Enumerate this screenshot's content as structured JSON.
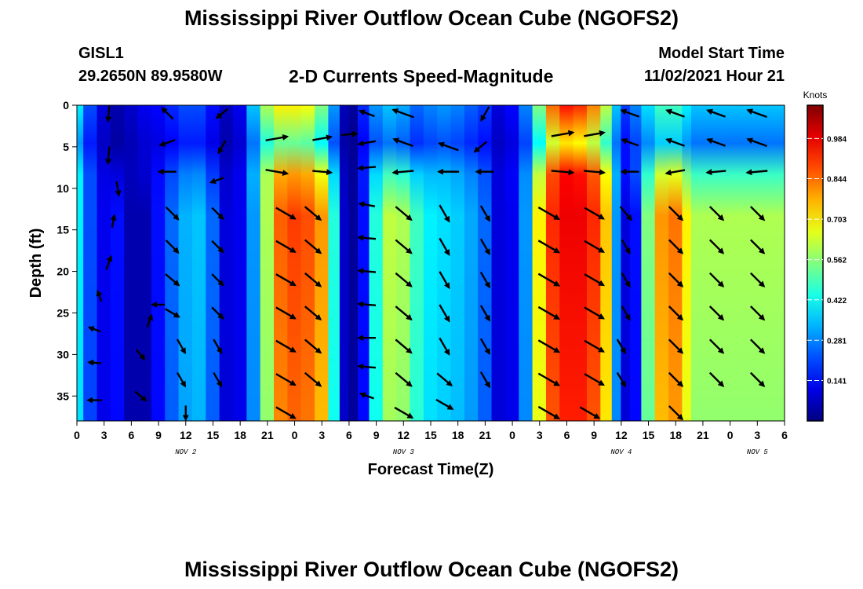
{
  "header": {
    "title": "Mississippi River Outflow Ocean Cube (NGOFS2)",
    "station": "GISL1",
    "coords": "29.2650N  89.9580W",
    "subtitle": "2-D Currents Speed-Magnitude",
    "start_label": "Model Start Time",
    "start_value": "11/02/2021 Hour 21"
  },
  "footer": {
    "title": "Mississippi River Outflow Ocean Cube (NGOFS2)"
  },
  "chart_data": {
    "type": "heatmap",
    "title": "2-D Currents Speed-Magnitude",
    "xlabel": "Forecast Time(Z)",
    "ylabel": "Depth (ft)",
    "x_tick_labels": [
      "0",
      "3",
      "6",
      "9",
      "12",
      "15",
      "18",
      "21",
      "0",
      "3",
      "6",
      "9",
      "12",
      "15",
      "18",
      "21",
      "0",
      "3",
      "6",
      "9",
      "12",
      "15",
      "18",
      "21",
      "0",
      "3",
      "6"
    ],
    "x_day_labels": [
      {
        "label": "NOV 2",
        "hour": 12
      },
      {
        "label": "NOV 3",
        "hour": 36
      },
      {
        "label": "NOV 4",
        "hour": 60
      },
      {
        "label": "NOV 5",
        "hour": 75
      }
    ],
    "xlim_hours": [
      0,
      78
    ],
    "y_ticks": [
      0,
      5,
      10,
      15,
      20,
      25,
      30,
      35
    ],
    "ylim": [
      0,
      38
    ],
    "y_inverted": true,
    "colorbar": {
      "label": "Knots",
      "ticks": [
        "0.984",
        "0.844",
        "0.703",
        "0.562",
        "0.422",
        "0.281",
        "0.141"
      ],
      "range": [
        0,
        1.1
      ],
      "colormap": "jet"
    },
    "speed_columns": [
      {
        "hour": 0,
        "surface": 0.4,
        "bottom": 0.4
      },
      {
        "hour": 1.5,
        "surface": 0.22,
        "bottom": 0.22
      },
      {
        "hour": 3,
        "surface": 0.1,
        "bottom": 0.12
      },
      {
        "hour": 4.5,
        "surface": 0.05,
        "bottom": 0.15
      },
      {
        "hour": 6,
        "surface": 0.08,
        "bottom": 0.05
      },
      {
        "hour": 7.5,
        "surface": 0.12,
        "bottom": 0.05
      },
      {
        "hour": 9,
        "surface": 0.14,
        "bottom": 0.15
      },
      {
        "hour": 10.5,
        "surface": 0.18,
        "bottom": 0.25
      },
      {
        "hour": 12,
        "surface": 0.22,
        "bottom": 0.33
      },
      {
        "hour": 13.5,
        "surface": 0.22,
        "bottom": 0.35
      },
      {
        "hour": 15,
        "surface": 0.15,
        "bottom": 0.25
      },
      {
        "hour": 16.5,
        "surface": 0.07,
        "bottom": 0.1
      },
      {
        "hour": 18,
        "surface": 0.12,
        "bottom": 0.12
      },
      {
        "hour": 19.5,
        "surface": 0.35,
        "bottom": 0.3
      },
      {
        "hour": 21,
        "surface": 0.6,
        "bottom": 0.6
      },
      {
        "hour": 22.5,
        "surface": 0.7,
        "bottom": 0.86
      },
      {
        "hour": 24,
        "surface": 0.7,
        "bottom": 0.9
      },
      {
        "hour": 25.5,
        "surface": 0.68,
        "bottom": 0.88
      },
      {
        "hour": 27,
        "surface": 0.55,
        "bottom": 0.8
      },
      {
        "hour": 28.5,
        "surface": 0.3,
        "bottom": 0.45
      },
      {
        "hour": 29.5,
        "surface": 0.06,
        "bottom": 0.08
      },
      {
        "hour": 30.5,
        "surface": 0.03,
        "bottom": 0.03
      },
      {
        "hour": 31.5,
        "surface": 0.18,
        "bottom": 0.15
      },
      {
        "hour": 33,
        "surface": 0.3,
        "bottom": 0.45
      },
      {
        "hour": 34.5,
        "surface": 0.35,
        "bottom": 0.62
      },
      {
        "hour": 36,
        "surface": 0.32,
        "bottom": 0.6
      },
      {
        "hour": 37.5,
        "surface": 0.25,
        "bottom": 0.48
      },
      {
        "hour": 39,
        "surface": 0.28,
        "bottom": 0.4
      },
      {
        "hour": 40.5,
        "surface": 0.3,
        "bottom": 0.38
      },
      {
        "hour": 42,
        "surface": 0.28,
        "bottom": 0.36
      },
      {
        "hour": 43.5,
        "surface": 0.24,
        "bottom": 0.32
      },
      {
        "hour": 45,
        "surface": 0.2,
        "bottom": 0.25
      },
      {
        "hour": 46.5,
        "surface": 0.1,
        "bottom": 0.1
      },
      {
        "hour": 48,
        "surface": 0.14,
        "bottom": 0.12
      },
      {
        "hour": 49.5,
        "surface": 0.28,
        "bottom": 0.3
      },
      {
        "hour": 51,
        "surface": 0.55,
        "bottom": 0.7
      },
      {
        "hour": 52.5,
        "surface": 0.85,
        "bottom": 0.92
      },
      {
        "hour": 54,
        "surface": 0.95,
        "bottom": 0.98
      },
      {
        "hour": 55.5,
        "surface": 0.92,
        "bottom": 0.98
      },
      {
        "hour": 57,
        "surface": 0.82,
        "bottom": 0.92
      },
      {
        "hour": 58.5,
        "surface": 0.62,
        "bottom": 0.75
      },
      {
        "hour": 59.5,
        "surface": 0.35,
        "bottom": 0.3
      },
      {
        "hour": 60.5,
        "surface": 0.2,
        "bottom": 0.1
      },
      {
        "hour": 61.5,
        "surface": 0.28,
        "bottom": 0.15
      },
      {
        "hour": 63,
        "surface": 0.38,
        "bottom": 0.55
      },
      {
        "hour": 64.5,
        "surface": 0.48,
        "bottom": 0.8
      },
      {
        "hour": 66,
        "surface": 0.48,
        "bottom": 0.84
      },
      {
        "hour": 67.5,
        "surface": 0.4,
        "bottom": 0.7
      },
      {
        "hour": 68,
        "surface": 0.35,
        "bottom": 0.6
      }
    ],
    "vectors": [
      {
        "hour": 3.5,
        "depth": 1,
        "angle": 265,
        "len": 20
      },
      {
        "hour": 3.5,
        "depth": 6,
        "angle": 265,
        "len": 22
      },
      {
        "hour": 4.5,
        "depth": 10,
        "angle": 280,
        "len": 18
      },
      {
        "hour": 4,
        "depth": 14,
        "angle": 80,
        "len": 16
      },
      {
        "hour": 3.5,
        "depth": 19,
        "angle": 70,
        "len": 18
      },
      {
        "hour": 2.5,
        "depth": 23,
        "angle": 110,
        "len": 14
      },
      {
        "hour": 2,
        "depth": 27,
        "angle": 160,
        "len": 16
      },
      {
        "hour": 2,
        "depth": 31,
        "angle": 175,
        "len": 16
      },
      {
        "hour": 2,
        "depth": 35.5,
        "angle": 180,
        "len": 18
      },
      {
        "hour": 10,
        "depth": 1,
        "angle": 135,
        "len": 20
      },
      {
        "hour": 10,
        "depth": 4.5,
        "angle": 200,
        "len": 20
      },
      {
        "hour": 10,
        "depth": 8,
        "angle": 180,
        "len": 22
      },
      {
        "hour": 10.5,
        "depth": 13,
        "angle": 315,
        "len": 22
      },
      {
        "hour": 10.5,
        "depth": 17,
        "angle": 315,
        "len": 22
      },
      {
        "hour": 10.5,
        "depth": 21,
        "angle": 320,
        "len": 22
      },
      {
        "hour": 10.5,
        "depth": 25,
        "angle": 330,
        "len": 20
      },
      {
        "hour": 11.5,
        "depth": 29,
        "angle": 300,
        "len": 20
      },
      {
        "hour": 11.5,
        "depth": 33,
        "angle": 300,
        "len": 20
      },
      {
        "hour": 12,
        "depth": 37,
        "angle": 270,
        "len": 18
      },
      {
        "hour": 16,
        "depth": 1,
        "angle": 220,
        "len": 18
      },
      {
        "hour": 16,
        "depth": 5,
        "angle": 240,
        "len": 18
      },
      {
        "hour": 15.5,
        "depth": 9,
        "angle": 200,
        "len": 18
      },
      {
        "hour": 15.5,
        "depth": 13,
        "angle": 315,
        "len": 20
      },
      {
        "hour": 15.5,
        "depth": 17,
        "angle": 315,
        "len": 20
      },
      {
        "hour": 15.5,
        "depth": 21,
        "angle": 315,
        "len": 20
      },
      {
        "hour": 15.5,
        "depth": 25,
        "angle": 315,
        "len": 20
      },
      {
        "hour": 15.5,
        "depth": 29,
        "angle": 300,
        "len": 20
      },
      {
        "hour": 15.5,
        "depth": 33,
        "angle": 300,
        "len": 20
      },
      {
        "hour": 8,
        "depth": 26,
        "angle": 70,
        "len": 16
      },
      {
        "hour": 7,
        "depth": 30,
        "angle": 310,
        "len": 16
      },
      {
        "hour": 7,
        "depth": 35,
        "angle": 320,
        "len": 18
      },
      {
        "hour": 9,
        "depth": 24,
        "angle": 180,
        "len": 16
      },
      {
        "hour": 22,
        "depth": 4,
        "angle": 10,
        "len": 28
      },
      {
        "hour": 22,
        "depth": 8,
        "angle": 350,
        "len": 28
      },
      {
        "hour": 23,
        "depth": 13,
        "angle": 330,
        "len": 28
      },
      {
        "hour": 23,
        "depth": 17,
        "angle": 330,
        "len": 28
      },
      {
        "hour": 23,
        "depth": 21,
        "angle": 330,
        "len": 28
      },
      {
        "hour": 23,
        "depth": 25,
        "angle": 330,
        "len": 28
      },
      {
        "hour": 23,
        "depth": 29,
        "angle": 330,
        "len": 28
      },
      {
        "hour": 23,
        "depth": 33,
        "angle": 330,
        "len": 28
      },
      {
        "hour": 23,
        "depth": 37,
        "angle": 330,
        "len": 28
      },
      {
        "hour": 27,
        "depth": 4,
        "angle": 10,
        "len": 24
      },
      {
        "hour": 27,
        "depth": 8,
        "angle": 355,
        "len": 24
      },
      {
        "hour": 26,
        "depth": 13,
        "angle": 320,
        "len": 26
      },
      {
        "hour": 26,
        "depth": 17,
        "angle": 320,
        "len": 26
      },
      {
        "hour": 26,
        "depth": 21,
        "angle": 320,
        "len": 26
      },
      {
        "hour": 26,
        "depth": 25,
        "angle": 320,
        "len": 26
      },
      {
        "hour": 26,
        "depth": 29,
        "angle": 320,
        "len": 26
      },
      {
        "hour": 26,
        "depth": 33,
        "angle": 320,
        "len": 26
      },
      {
        "hour": 30,
        "depth": 3.5,
        "angle": 5,
        "len": 20
      },
      {
        "hour": 32,
        "depth": 1,
        "angle": 160,
        "len": 20
      },
      {
        "hour": 32,
        "depth": 4.5,
        "angle": 190,
        "len": 22
      },
      {
        "hour": 32,
        "depth": 7.5,
        "angle": 185,
        "len": 22
      },
      {
        "hour": 32,
        "depth": 12,
        "angle": 170,
        "len": 20
      },
      {
        "hour": 32,
        "depth": 16,
        "angle": 175,
        "len": 22
      },
      {
        "hour": 32,
        "depth": 20,
        "angle": 175,
        "len": 22
      },
      {
        "hour": 32,
        "depth": 24,
        "angle": 175,
        "len": 22
      },
      {
        "hour": 32,
        "depth": 28,
        "angle": 180,
        "len": 22
      },
      {
        "hour": 32,
        "depth": 31.5,
        "angle": 175,
        "len": 22
      },
      {
        "hour": 32,
        "depth": 35,
        "angle": 160,
        "len": 18
      },
      {
        "hour": 36,
        "depth": 1,
        "angle": 160,
        "len": 28
      },
      {
        "hour": 36,
        "depth": 4.5,
        "angle": 160,
        "len": 26
      },
      {
        "hour": 36,
        "depth": 8,
        "angle": 185,
        "len": 26
      },
      {
        "hour": 36,
        "depth": 13,
        "angle": 320,
        "len": 26
      },
      {
        "hour": 36,
        "depth": 17,
        "angle": 320,
        "len": 26
      },
      {
        "hour": 36,
        "depth": 21,
        "angle": 320,
        "len": 26
      },
      {
        "hour": 36,
        "depth": 25,
        "angle": 320,
        "len": 26
      },
      {
        "hour": 36,
        "depth": 29,
        "angle": 320,
        "len": 26
      },
      {
        "hour": 36,
        "depth": 33,
        "angle": 320,
        "len": 26
      },
      {
        "hour": 36,
        "depth": 37,
        "angle": 330,
        "len": 26
      },
      {
        "hour": 41,
        "depth": 5,
        "angle": 160,
        "len": 26
      },
      {
        "hour": 41,
        "depth": 8,
        "angle": 180,
        "len": 26
      },
      {
        "hour": 40.5,
        "depth": 13,
        "angle": 300,
        "len": 24
      },
      {
        "hour": 40.5,
        "depth": 17,
        "angle": 300,
        "len": 24
      },
      {
        "hour": 40.5,
        "depth": 21,
        "angle": 300,
        "len": 24
      },
      {
        "hour": 40.5,
        "depth": 25,
        "angle": 300,
        "len": 24
      },
      {
        "hour": 40.5,
        "depth": 29,
        "angle": 300,
        "len": 24
      },
      {
        "hour": 40.5,
        "depth": 33,
        "angle": 320,
        "len": 24
      },
      {
        "hour": 40.5,
        "depth": 36,
        "angle": 330,
        "len": 24
      },
      {
        "hour": 45,
        "depth": 1,
        "angle": 240,
        "len": 20
      },
      {
        "hour": 44.5,
        "depth": 5,
        "angle": 220,
        "len": 20
      },
      {
        "hour": 45,
        "depth": 8,
        "angle": 180,
        "len": 22
      },
      {
        "hour": 45,
        "depth": 13,
        "angle": 300,
        "len": 22
      },
      {
        "hour": 45,
        "depth": 17,
        "angle": 300,
        "len": 22
      },
      {
        "hour": 45,
        "depth": 21,
        "angle": 300,
        "len": 22
      },
      {
        "hour": 45,
        "depth": 25,
        "angle": 300,
        "len": 22
      },
      {
        "hour": 45,
        "depth": 29,
        "angle": 300,
        "len": 22
      },
      {
        "hour": 45,
        "depth": 33,
        "angle": 300,
        "len": 22
      },
      {
        "hour": 53.5,
        "depth": 3.5,
        "angle": 10,
        "len": 28
      },
      {
        "hour": 53.5,
        "depth": 8,
        "angle": 355,
        "len": 28
      },
      {
        "hour": 52,
        "depth": 13,
        "angle": 330,
        "len": 30
      },
      {
        "hour": 52,
        "depth": 17,
        "angle": 330,
        "len": 30
      },
      {
        "hour": 52,
        "depth": 21,
        "angle": 330,
        "len": 30
      },
      {
        "hour": 52,
        "depth": 25,
        "angle": 330,
        "len": 30
      },
      {
        "hour": 52,
        "depth": 29,
        "angle": 330,
        "len": 30
      },
      {
        "hour": 52,
        "depth": 33,
        "angle": 330,
        "len": 30
      },
      {
        "hour": 52,
        "depth": 37,
        "angle": 330,
        "len": 30
      },
      {
        "hour": 57,
        "depth": 3.5,
        "angle": 10,
        "len": 26
      },
      {
        "hour": 57,
        "depth": 8,
        "angle": 355,
        "len": 26
      },
      {
        "hour": 57,
        "depth": 13,
        "angle": 330,
        "len": 28
      },
      {
        "hour": 57,
        "depth": 17,
        "angle": 330,
        "len": 28
      },
      {
        "hour": 57,
        "depth": 21,
        "angle": 330,
        "len": 28
      },
      {
        "hour": 57,
        "depth": 25,
        "angle": 330,
        "len": 28
      },
      {
        "hour": 57,
        "depth": 29,
        "angle": 330,
        "len": 28
      },
      {
        "hour": 57,
        "depth": 33,
        "angle": 330,
        "len": 28
      },
      {
        "hour": 56.5,
        "depth": 37,
        "angle": 330,
        "len": 28
      },
      {
        "hour": 61,
        "depth": 1,
        "angle": 160,
        "len": 24
      },
      {
        "hour": 61,
        "depth": 4.5,
        "angle": 160,
        "len": 22
      },
      {
        "hour": 61,
        "depth": 8,
        "angle": 180,
        "len": 22
      },
      {
        "hour": 60.5,
        "depth": 13,
        "angle": 310,
        "len": 22
      },
      {
        "hour": 60.5,
        "depth": 17,
        "angle": 300,
        "len": 20
      },
      {
        "hour": 60.5,
        "depth": 21,
        "angle": 300,
        "len": 20
      },
      {
        "hour": 60.5,
        "depth": 25,
        "angle": 300,
        "len": 20
      },
      {
        "hour": 60,
        "depth": 29,
        "angle": 300,
        "len": 20
      },
      {
        "hour": 60,
        "depth": 33,
        "angle": 300,
        "len": 20
      },
      {
        "hour": 66,
        "depth": 1,
        "angle": 160,
        "len": 24
      },
      {
        "hour": 66,
        "depth": 4.5,
        "angle": 160,
        "len": 24
      },
      {
        "hour": 66,
        "depth": 8,
        "angle": 190,
        "len": 24
      },
      {
        "hour": 66,
        "depth": 13,
        "angle": 315,
        "len": 24
      },
      {
        "hour": 66,
        "depth": 17,
        "angle": 315,
        "len": 24
      },
      {
        "hour": 66,
        "depth": 21,
        "angle": 315,
        "len": 24
      },
      {
        "hour": 66,
        "depth": 25,
        "angle": 315,
        "len": 24
      },
      {
        "hour": 66,
        "depth": 29,
        "angle": 315,
        "len": 24
      },
      {
        "hour": 66,
        "depth": 33,
        "angle": 315,
        "len": 24
      },
      {
        "hour": 66,
        "depth": 37,
        "angle": 315,
        "len": 24
      },
      {
        "hour": 70.5,
        "depth": 1,
        "angle": 160,
        "len": 24
      },
      {
        "hour": 70.5,
        "depth": 4.5,
        "angle": 160,
        "len": 24
      },
      {
        "hour": 70.5,
        "depth": 8,
        "angle": 185,
        "len": 24
      },
      {
        "hour": 70.5,
        "depth": 13,
        "angle": 315,
        "len": 24
      },
      {
        "hour": 70.5,
        "depth": 17,
        "angle": 315,
        "len": 24
      },
      {
        "hour": 70.5,
        "depth": 21,
        "angle": 315,
        "len": 24
      },
      {
        "hour": 70.5,
        "depth": 25,
        "angle": 315,
        "len": 24
      },
      {
        "hour": 70.5,
        "depth": 29,
        "angle": 315,
        "len": 24
      },
      {
        "hour": 70.5,
        "depth": 33,
        "angle": 315,
        "len": 24
      },
      {
        "hour": 75,
        "depth": 1,
        "angle": 160,
        "len": 26
      },
      {
        "hour": 75,
        "depth": 4.5,
        "angle": 160,
        "len": 26
      },
      {
        "hour": 75,
        "depth": 8,
        "angle": 185,
        "len": 26
      },
      {
        "hour": 75,
        "depth": 13,
        "angle": 315,
        "len": 24
      },
      {
        "hour": 75,
        "depth": 17,
        "angle": 315,
        "len": 24
      },
      {
        "hour": 75,
        "depth": 21,
        "angle": 315,
        "len": 24
      },
      {
        "hour": 75,
        "depth": 25,
        "angle": 315,
        "len": 24
      },
      {
        "hour": 75,
        "depth": 29,
        "angle": 315,
        "len": 24
      },
      {
        "hour": 75,
        "depth": 33,
        "angle": 315,
        "len": 24
      }
    ]
  }
}
